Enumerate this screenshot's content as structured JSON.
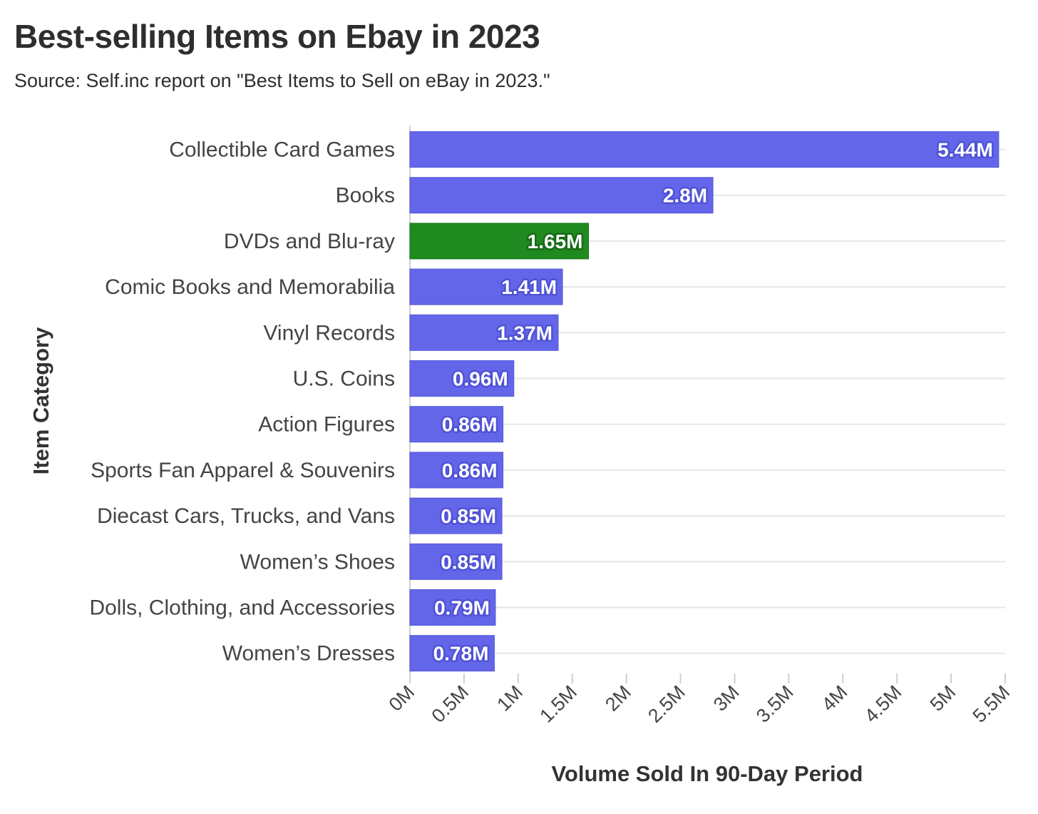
{
  "chart_data": {
    "type": "bar",
    "orientation": "horizontal",
    "title": "Best-selling Items on Ebay in 2023",
    "subtitle": "Source: Self.inc report on \"Best Items to Sell on eBay in 2023.\"",
    "xlabel": "Volume Sold In 90-Day Period",
    "ylabel": "Item Category",
    "xlim": [
      0,
      5.5
    ],
    "grid": true,
    "xticks": [
      0,
      0.5,
      1,
      1.5,
      2,
      2.5,
      3,
      3.5,
      4,
      4.5,
      5,
      5.5
    ],
    "xtick_labels": [
      "0M",
      "0.5M",
      "1M",
      "1.5M",
      "2M",
      "2.5M",
      "3M",
      "3.5M",
      "4M",
      "4.5M",
      "5M",
      "5.5M"
    ],
    "categories": [
      "Collectible Card Games",
      "Books",
      "DVDs and Blu-ray",
      "Comic Books and Memorabilia",
      "Vinyl Records",
      "U.S. Coins",
      "Action Figures",
      "Sports Fan Apparel & Souvenirs",
      "Diecast Cars, Trucks, and Vans",
      "Women’s Shoes",
      "Dolls, Clothing, and Accessories",
      "Women’s Dresses"
    ],
    "values": [
      5.44,
      2.8,
      1.65,
      1.41,
      1.37,
      0.96,
      0.86,
      0.86,
      0.85,
      0.85,
      0.79,
      0.78
    ],
    "value_labels": [
      "5.44M",
      "2.8M",
      "1.65M",
      "1.41M",
      "1.37M",
      "0.96M",
      "0.86M",
      "0.86M",
      "0.85M",
      "0.85M",
      "0.79M",
      "0.78M"
    ],
    "highlight_index": 2,
    "colors": {
      "bar": "#6466e9",
      "bar_stroke": "#5558d8",
      "highlight": "#1f8a1f",
      "highlight_stroke": "#17751a",
      "label_halo": "#4f52d6",
      "highlight_halo": "#166b16",
      "grid": "#e6e6e6",
      "axis": "#cfcfcf"
    }
  }
}
